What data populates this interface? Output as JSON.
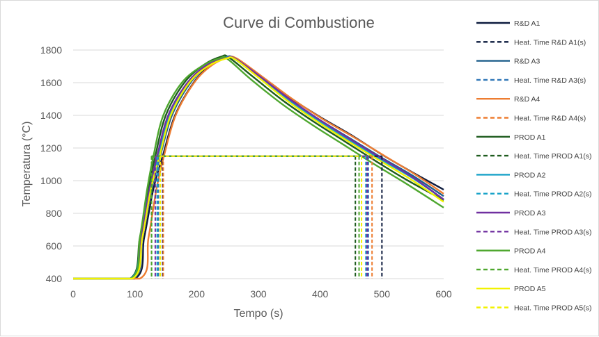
{
  "chart_data": {
    "type": "line",
    "title": "Curve di Combustione",
    "xlabel": "Tempo (s)",
    "ylabel": "Temperatura (°C)",
    "xlim": [
      0,
      600
    ],
    "ylim": [
      400,
      1800
    ],
    "xticks": [
      "0",
      "100",
      "200",
      "300",
      "400",
      "500",
      "600"
    ],
    "yticks": [
      "400",
      "600",
      "800",
      "1000",
      "1200",
      "1400",
      "1600",
      "1800"
    ],
    "grid": true,
    "legend_position": "right",
    "threshold_temperature": 1150,
    "series": [
      {
        "name": "R&D A1",
        "color": "#0d1b3e",
        "start": 100,
        "rise": [
          [
            100,
            400
          ],
          [
            115,
            650
          ],
          [
            130,
            950
          ],
          [
            145,
            1150
          ],
          [
            165,
            1400
          ],
          [
            195,
            1600
          ],
          [
            220,
            1700
          ],
          [
            245,
            1755
          ],
          [
            262,
            1750
          ],
          [
            300,
            1650
          ],
          [
            350,
            1510
          ],
          [
            400,
            1390
          ],
          [
            450,
            1280
          ],
          [
            500,
            1160
          ],
          [
            550,
            1050
          ],
          [
            600,
            945
          ]
        ]
      },
      {
        "name": "Heat. Time R&D A1(s)",
        "color": "#0d1b3e",
        "dashed": true,
        "x": [
          145,
          500
        ]
      },
      {
        "name": "R&D A3",
        "color": "#1f5f8b",
        "start": 97,
        "rise": [
          [
            97,
            400
          ],
          [
            112,
            650
          ],
          [
            127,
            950
          ],
          [
            141,
            1150
          ],
          [
            160,
            1400
          ],
          [
            190,
            1600
          ],
          [
            218,
            1705
          ],
          [
            245,
            1755
          ],
          [
            262,
            1750
          ],
          [
            300,
            1645
          ],
          [
            350,
            1495
          ],
          [
            400,
            1370
          ],
          [
            450,
            1255
          ],
          [
            500,
            1140
          ],
          [
            550,
            1030
          ],
          [
            600,
            905
          ]
        ]
      },
      {
        "name": "Heat. Time R&D A3(s)",
        "color": "#2e75b6",
        "dashed": true,
        "x": [
          138,
          478
        ]
      },
      {
        "name": "R&D A4",
        "color": "#ed7d31",
        "start": 108,
        "rise": [
          [
            108,
            400
          ],
          [
            122,
            650
          ],
          [
            135,
            950
          ],
          [
            147,
            1150
          ],
          [
            166,
            1400
          ],
          [
            196,
            1600
          ],
          [
            224,
            1705
          ],
          [
            250,
            1752
          ],
          [
            265,
            1748
          ],
          [
            305,
            1640
          ],
          [
            355,
            1500
          ],
          [
            405,
            1375
          ],
          [
            455,
            1265
          ],
          [
            505,
            1150
          ],
          [
            555,
            1035
          ],
          [
            600,
            920
          ]
        ]
      },
      {
        "name": "Heat. Time R&D A4(s)",
        "color": "#ed7d31",
        "dashed": true,
        "x": [
          146,
          484
        ]
      },
      {
        "name": "PROD A1",
        "color": "#1e5b1e",
        "start": 92,
        "rise": [
          [
            92,
            400
          ],
          [
            108,
            650
          ],
          [
            122,
            950
          ],
          [
            133,
            1150
          ],
          [
            150,
            1400
          ],
          [
            180,
            1600
          ],
          [
            212,
            1710
          ],
          [
            240,
            1760
          ],
          [
            252,
            1755
          ],
          [
            290,
            1640
          ],
          [
            340,
            1490
          ],
          [
            390,
            1360
          ],
          [
            440,
            1240
          ],
          [
            490,
            1120
          ],
          [
            540,
            1005
          ],
          [
            600,
            880
          ]
        ]
      },
      {
        "name": "Heat. Time PROD A1(s)",
        "color": "#1e5b1e",
        "dashed": true,
        "x": [
          127,
          457
        ]
      },
      {
        "name": "PROD A2",
        "color": "#17a2c8",
        "start": 93,
        "rise": [
          [
            93,
            400
          ],
          [
            109,
            650
          ],
          [
            124,
            950
          ],
          [
            138,
            1150
          ],
          [
            156,
            1400
          ],
          [
            187,
            1600
          ],
          [
            216,
            1705
          ],
          [
            245,
            1752
          ],
          [
            260,
            1748
          ],
          [
            298,
            1640
          ],
          [
            348,
            1495
          ],
          [
            398,
            1365
          ],
          [
            448,
            1245
          ],
          [
            498,
            1130
          ],
          [
            548,
            1020
          ],
          [
            600,
            885
          ]
        ]
      },
      {
        "name": "Heat. Time PROD A2(s)",
        "color": "#17a2c8",
        "dashed": true,
        "x": [
          136,
          474
        ]
      },
      {
        "name": "PROD A3",
        "color": "#7030a0",
        "start": 95,
        "rise": [
          [
            95,
            400
          ],
          [
            110,
            650
          ],
          [
            124,
            950
          ],
          [
            136,
            1150
          ],
          [
            154,
            1400
          ],
          [
            185,
            1600
          ],
          [
            215,
            1705
          ],
          [
            248,
            1752
          ],
          [
            262,
            1748
          ],
          [
            300,
            1645
          ],
          [
            350,
            1500
          ],
          [
            400,
            1370
          ],
          [
            450,
            1250
          ],
          [
            500,
            1135
          ],
          [
            550,
            1020
          ],
          [
            600,
            885
          ]
        ]
      },
      {
        "name": "Heat. Time PROD A3(s)",
        "color": "#7030a0",
        "dashed": true,
        "x": [
          133,
          476
        ]
      },
      {
        "name": "PROD A4",
        "color": "#4ea72e",
        "start": 94,
        "rise": [
          [
            94,
            400
          ],
          [
            108,
            650
          ],
          [
            120,
            950
          ],
          [
            130,
            1150
          ],
          [
            146,
            1400
          ],
          [
            176,
            1600
          ],
          [
            210,
            1705
          ],
          [
            238,
            1750
          ],
          [
            250,
            1745
          ],
          [
            288,
            1620
          ],
          [
            338,
            1470
          ],
          [
            388,
            1340
          ],
          [
            438,
            1220
          ],
          [
            488,
            1100
          ],
          [
            540,
            980
          ],
          [
            600,
            835
          ]
        ]
      },
      {
        "name": "Heat. Time PROD A4(s)",
        "color": "#4ea72e",
        "dashed": true,
        "x": [
          127,
          463
        ]
      },
      {
        "name": "PROD A5",
        "color": "#f2f200",
        "start": 96,
        "rise": [
          [
            96,
            400
          ],
          [
            112,
            650
          ],
          [
            126,
            950
          ],
          [
            140,
            1150
          ],
          [
            158,
            1400
          ],
          [
            188,
            1600
          ],
          [
            218,
            1700
          ],
          [
            248,
            1748
          ],
          [
            262,
            1744
          ],
          [
            300,
            1632
          ],
          [
            350,
            1480
          ],
          [
            400,
            1350
          ],
          [
            450,
            1230
          ],
          [
            500,
            1115
          ],
          [
            550,
            1000
          ],
          [
            600,
            870
          ]
        ]
      },
      {
        "name": "Heat. Time PROD A5(s)",
        "color": "#f2f200",
        "dashed": true,
        "x": [
          141,
          467
        ]
      }
    ]
  }
}
